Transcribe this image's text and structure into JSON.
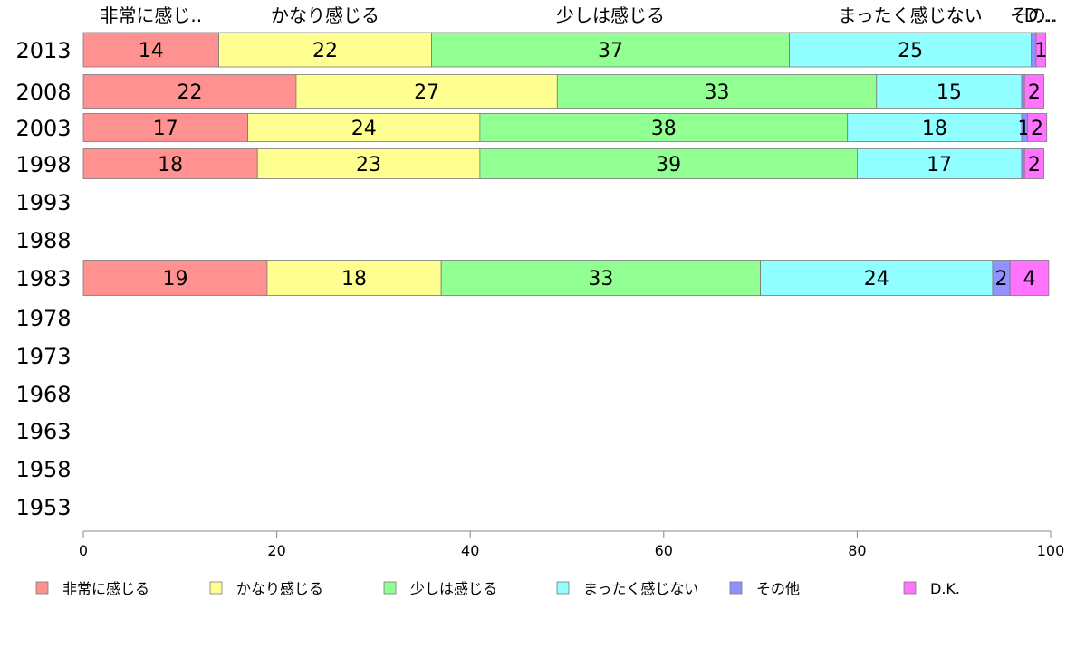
{
  "chart_data": {
    "type": "bar",
    "orientation": "horizontal",
    "stacked": true,
    "categories": [
      "2013",
      "2008",
      "2003",
      "1998",
      "1993",
      "1988",
      "1983",
      "1978",
      "1973",
      "1968",
      "1963",
      "1958",
      "1953"
    ],
    "series": [
      {
        "name": "非常に感じる",
        "short": "非常に感じ..",
        "color": "#ff9191",
        "values": [
          14,
          22,
          17,
          18,
          null,
          null,
          19,
          null,
          null,
          null,
          null,
          null,
          null
        ]
      },
      {
        "name": "かなり感じる",
        "short": "かなり感じる",
        "color": "#ffff91",
        "values": [
          22,
          27,
          24,
          23,
          null,
          null,
          18,
          null,
          null,
          null,
          null,
          null,
          null
        ]
      },
      {
        "name": "少しは感じる",
        "short": "少しは感じる",
        "color": "#91ff91",
        "values": [
          37,
          33,
          38,
          39,
          null,
          null,
          33,
          null,
          null,
          null,
          null,
          null,
          null
        ]
      },
      {
        "name": "まったく感じない",
        "short": "まったく感じない",
        "color": "#91ffff",
        "values": [
          25,
          15,
          18,
          17,
          null,
          null,
          24,
          null,
          null,
          null,
          null,
          null,
          null
        ]
      },
      {
        "name": "その他",
        "short": "その..",
        "color": "#9191ff",
        "values": [
          0.5,
          0.3,
          0.6,
          0.3,
          null,
          null,
          1.8,
          null,
          null,
          null,
          null,
          null,
          null
        ]
      },
      {
        "name": "D.K.",
        "short": "D...",
        "color": "#ff73ff",
        "values": [
          1,
          2,
          2,
          2,
          null,
          null,
          4,
          null,
          null,
          null,
          null,
          null,
          null
        ]
      }
    ],
    "value_labels": [
      [
        "14",
        "22",
        "37",
        "25",
        "",
        "1"
      ],
      [
        "22",
        "27",
        "33",
        "15",
        "",
        "2"
      ],
      [
        "17",
        "24",
        "38",
        "18",
        "1",
        "2"
      ],
      [
        "18",
        "23",
        "39",
        "17",
        "",
        "2"
      ],
      [
        "",
        "",
        "",
        "",
        "",
        ""
      ],
      [
        "",
        "",
        "",
        "",
        "",
        ""
      ],
      [
        "19",
        "18",
        "33",
        "24",
        "2",
        "4"
      ],
      [
        "",
        "",
        "",
        "",
        "",
        ""
      ],
      [
        "",
        "",
        "",
        "",
        "",
        ""
      ],
      [
        "",
        "",
        "",
        "",
        "",
        ""
      ],
      [
        "",
        "",
        "",
        "",
        "",
        ""
      ],
      [
        "",
        "",
        "",
        "",
        "",
        ""
      ],
      [
        "",
        "",
        "",
        "",
        "",
        ""
      ]
    ],
    "xlim": [
      0,
      100
    ],
    "xticks": [
      0,
      20,
      40,
      60,
      80,
      100
    ],
    "title": "",
    "xlabel": "",
    "ylabel": "",
    "grid": false,
    "legend_position": "bottom"
  }
}
